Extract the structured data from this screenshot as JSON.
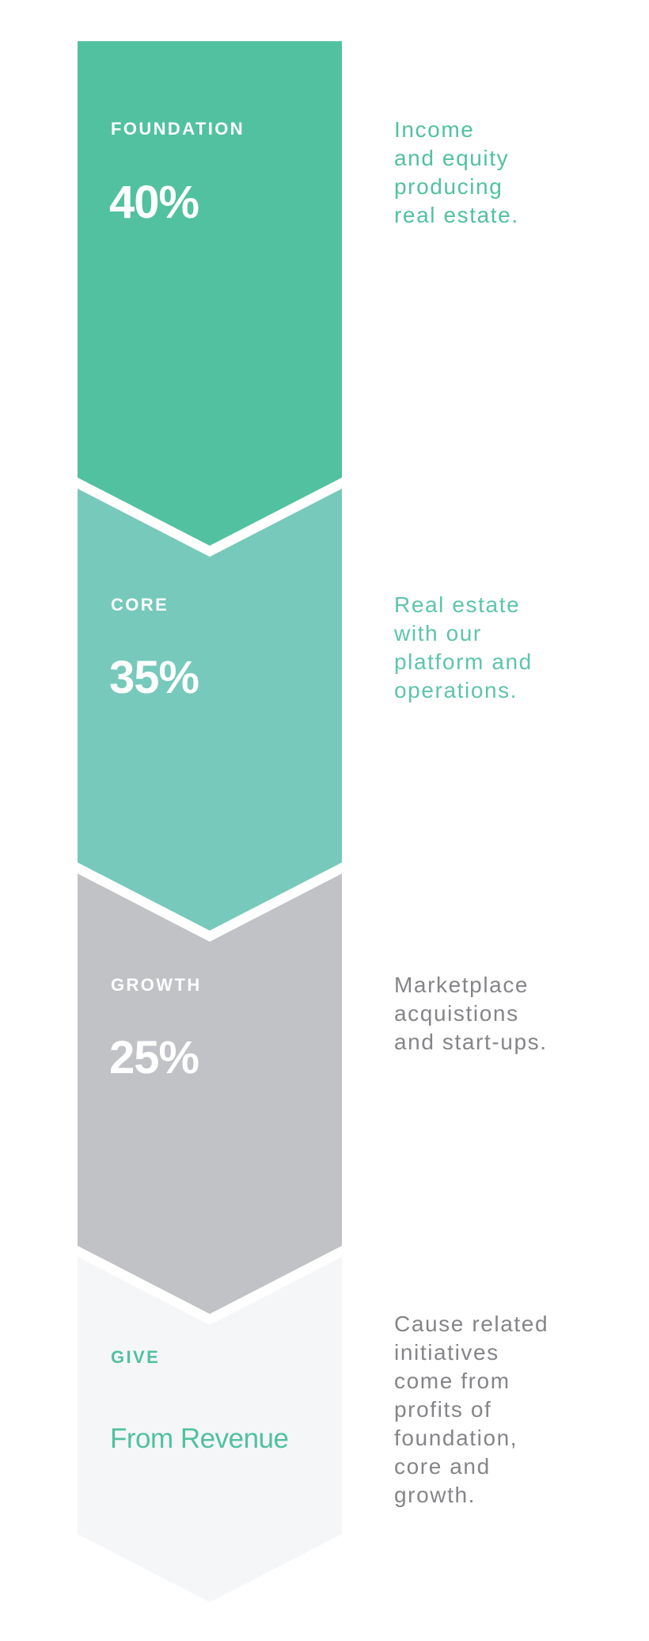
{
  "colors": {
    "foundation": "#52c19f",
    "core": "#76c9bb",
    "growth": "#c1c2c6",
    "give": "#f5f6f8",
    "accent_text": "#51c19f",
    "grey_text": "#858589"
  },
  "segments": [
    {
      "label": "FOUNDATION",
      "value": "40%",
      "description": "Income\nand equity\nproducing\nreal estate."
    },
    {
      "label": "CORE",
      "value": "35%",
      "description": "Real estate\nwith our\nplatform and\noperations."
    },
    {
      "label": "GROWTH",
      "value": "25%",
      "description": "Marketplace\nacquistions\nand start-ups."
    },
    {
      "label": "GIVE",
      "value": "From Revenue",
      "description": "Cause related\ninitiatives\ncome from\nprofits of\nfoundation,\ncore and\ngrowth."
    }
  ]
}
